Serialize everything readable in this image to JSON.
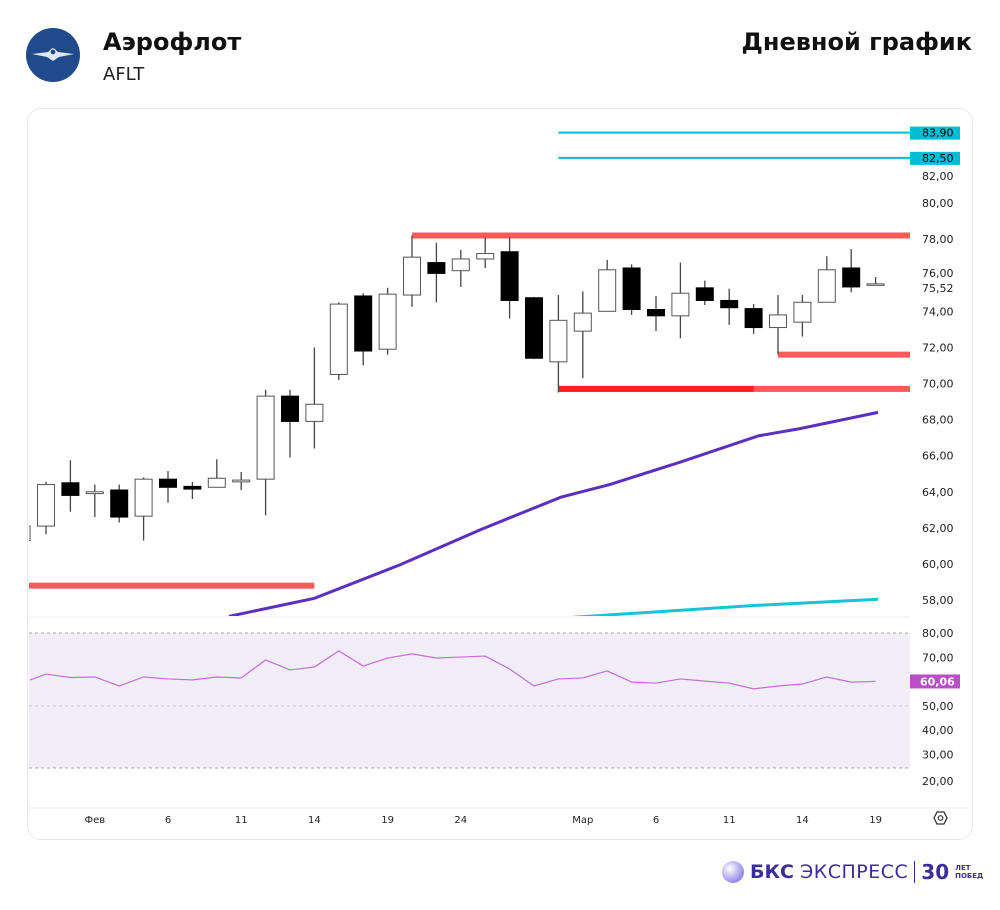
{
  "header": {
    "company": "Аэрофлот",
    "ticker": "AFLT",
    "chart_type": "Дневной график"
  },
  "footer": {
    "brand_bold": "БКС",
    "brand_regular": "ЭКСПРЕСС",
    "anniv_number": "30",
    "anniv_line1": "ЛЕТ",
    "anniv_line2": "ПОБЕД"
  },
  "colors": {
    "up": "#ffffff",
    "down": "#000000",
    "level": "#ff5a5a",
    "level_dark": "#ff1f1f",
    "target": "#00bcd4",
    "ma_long": "#5b2fc0",
    "ma_short": "#17c3d6",
    "rsi": "#c86dd7",
    "rsi_bg": "#f1edf9",
    "rsi_badge": "#b94fc6"
  },
  "chart_data": {
    "type": "candlestick",
    "title": "Дневной график",
    "price_axis": {
      "ylim": [
        56.9,
        85.0
      ],
      "ticks": [
        "82,00",
        "80,00",
        "78,00",
        "76,00",
        "74,00",
        "72,00",
        "70,00",
        "68,00",
        "66,00",
        "64,00",
        "62,00",
        "60,00",
        "58,00"
      ],
      "tick_values": [
        82,
        80,
        78,
        76,
        74,
        72,
        70,
        68,
        66,
        64,
        62,
        60,
        58
      ],
      "last_price": "75,52",
      "last_value": 75.52
    },
    "x_labels": [
      {
        "i": 3,
        "label": "Фев"
      },
      {
        "i": 6,
        "label": "6"
      },
      {
        "i": 9,
        "label": "11"
      },
      {
        "i": 12,
        "label": "14"
      },
      {
        "i": 15,
        "label": "19"
      },
      {
        "i": 18,
        "label": "24"
      },
      {
        "i": 23,
        "label": "Мар"
      },
      {
        "i": 26,
        "label": "6"
      },
      {
        "i": 29,
        "label": "11"
      },
      {
        "i": 32,
        "label": "14"
      },
      {
        "i": 35,
        "label": "19"
      }
    ],
    "candles": [
      [
        61.3,
        62.1,
        62.2,
        61.2
      ],
      [
        62.1,
        64.4,
        64.55,
        61.65
      ],
      [
        64.5,
        63.8,
        65.75,
        62.9
      ],
      [
        63.9,
        64.0,
        64.4,
        62.6
      ],
      [
        64.1,
        62.6,
        64.4,
        62.3
      ],
      [
        62.65,
        64.7,
        64.8,
        61.3
      ],
      [
        64.7,
        64.25,
        65.15,
        63.4
      ],
      [
        64.3,
        64.15,
        64.55,
        63.6
      ],
      [
        64.25,
        64.75,
        65.8,
        64.25
      ],
      [
        64.55,
        64.65,
        65.1,
        64.1
      ],
      [
        64.7,
        69.3,
        69.65,
        62.7
      ],
      [
        69.3,
        67.9,
        69.65,
        65.9
      ],
      [
        67.9,
        68.85,
        72.0,
        66.4
      ],
      [
        70.5,
        74.4,
        74.5,
        70.2
      ],
      [
        74.85,
        71.8,
        75.0,
        71.0
      ],
      [
        71.9,
        74.95,
        75.3,
        71.6
      ],
      [
        74.9,
        77.0,
        78.2,
        74.25
      ],
      [
        76.7,
        76.1,
        77.8,
        74.5
      ],
      [
        76.25,
        76.9,
        77.4,
        75.35
      ],
      [
        76.9,
        77.2,
        78.1,
        76.4
      ],
      [
        77.3,
        74.6,
        78.1,
        73.6
      ],
      [
        74.75,
        71.4,
        74.8,
        71.35
      ],
      [
        71.2,
        73.5,
        74.9,
        69.5
      ],
      [
        72.9,
        73.9,
        75.1,
        70.3
      ],
      [
        74.0,
        76.3,
        76.85,
        74.0
      ],
      [
        76.4,
        74.1,
        76.6,
        73.8
      ],
      [
        74.1,
        73.75,
        74.85,
        72.9
      ],
      [
        73.75,
        75.0,
        76.7,
        72.5
      ],
      [
        75.3,
        74.6,
        75.7,
        74.35
      ],
      [
        74.6,
        74.2,
        75.25,
        73.25
      ],
      [
        74.15,
        73.1,
        74.4,
        72.75
      ],
      [
        73.1,
        73.8,
        74.9,
        71.6
      ],
      [
        73.4,
        74.5,
        74.9,
        72.6
      ],
      [
        74.5,
        76.3,
        77.05,
        74.5
      ],
      [
        76.4,
        75.35,
        77.45,
        75.05
      ],
      [
        75.5,
        75.52,
        75.9,
        75.5
      ]
    ],
    "candle_format": [
      "open",
      "close",
      "high",
      "low"
    ],
    "levels": [
      {
        "value": 83.9,
        "from": 22,
        "label": "83,90",
        "kind": "target"
      },
      {
        "value": 82.5,
        "from": 22,
        "label": "82,50",
        "kind": "target"
      },
      {
        "value": 78.2,
        "from": 16,
        "kind": "resistance"
      },
      {
        "value": 71.6,
        "from": 31,
        "kind": "support"
      },
      {
        "value": 69.7,
        "from": 22,
        "dark_to": 30,
        "kind": "support"
      },
      {
        "value": 58.8,
        "from": -0.4,
        "to": 12,
        "kind": "support"
      }
    ],
    "ma_long": [
      [
        8.5,
        57.1
      ],
      [
        12,
        58.1
      ],
      [
        15.5,
        59.95
      ],
      [
        18.8,
        61.9
      ],
      [
        22.1,
        63.7
      ],
      [
        24.1,
        64.4
      ],
      [
        27,
        65.65
      ],
      [
        30.2,
        67.1
      ],
      [
        31.9,
        67.5
      ],
      [
        35.1,
        68.4
      ]
    ],
    "ma_short": [
      [
        22.1,
        57.0
      ],
      [
        26,
        57.35
      ],
      [
        30,
        57.7
      ],
      [
        35.1,
        58.05
      ]
    ],
    "rsi": {
      "ticks": [
        "80,00",
        "70,00",
        "50,00",
        "40,00",
        "30,00",
        "20,00"
      ],
      "tick_values": [
        80,
        70,
        50,
        40,
        30,
        20
      ],
      "last_label": "60,06",
      "last_value": 60.06,
      "values": [
        60.7,
        63.1,
        61.7,
        61.9,
        58.2,
        61.9,
        61.1,
        60.7,
        61.9,
        61.5,
        68.9,
        64.8,
        66.0,
        72.6,
        66.4,
        69.7,
        71.4,
        69.7,
        70.1,
        70.5,
        65.2,
        58.2,
        61.1,
        61.5,
        64.4,
        59.8,
        59.4,
        61.1,
        60.2,
        59.4,
        57.0,
        58.2,
        59.0,
        61.9,
        59.8,
        60.06
      ]
    }
  }
}
